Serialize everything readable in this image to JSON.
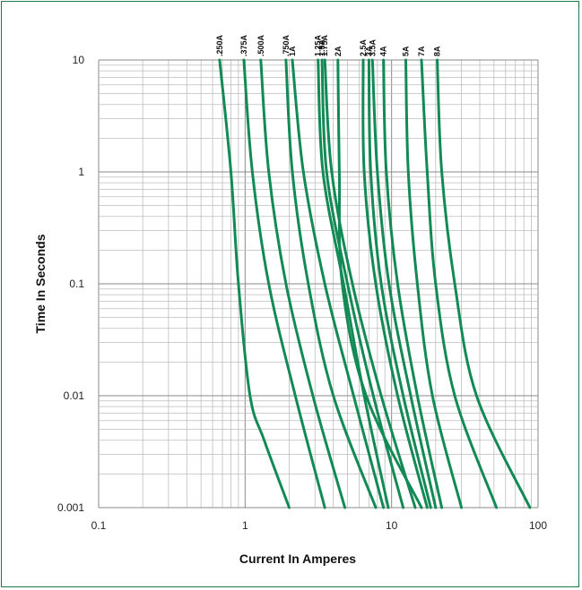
{
  "chart_data": {
    "type": "line",
    "title": "",
    "xlabel": "Current In Amperes",
    "ylabel": "Time In Seconds",
    "x_scale": "log",
    "y_scale": "log",
    "xlim": [
      0.1,
      100
    ],
    "ylim": [
      0.001,
      10
    ],
    "x_ticks": [
      "0.1",
      "1",
      "10",
      "100"
    ],
    "y_ticks": [
      "10",
      "1",
      "0.1",
      "0.01",
      "0.001"
    ],
    "grid": true,
    "line_color": "#138a55",
    "series": [
      {
        "name": ".250A",
        "points": [
          [
            0.67,
            10
          ],
          [
            0.8,
            1
          ],
          [
            0.9,
            0.1
          ],
          [
            1.08,
            0.01
          ],
          [
            1.35,
            0.004
          ],
          [
            2.0,
            0.001
          ]
        ]
      },
      {
        "name": ".375A",
        "points": [
          [
            0.98,
            10
          ],
          [
            1.12,
            1
          ],
          [
            1.45,
            0.1
          ],
          [
            2.2,
            0.01
          ],
          [
            3.5,
            0.001
          ]
        ]
      },
      {
        "name": ".500A",
        "points": [
          [
            1.28,
            10
          ],
          [
            1.45,
            1
          ],
          [
            1.9,
            0.1
          ],
          [
            2.9,
            0.01
          ],
          [
            4.8,
            0.001
          ]
        ]
      },
      {
        "name": ".750A",
        "points": [
          [
            1.9,
            10
          ],
          [
            2.1,
            1
          ],
          [
            2.7,
            0.1
          ],
          [
            4.0,
            0.01
          ],
          [
            7.8,
            0.001
          ]
        ]
      },
      {
        "name": "1A",
        "points": [
          [
            2.1,
            10
          ],
          [
            2.5,
            1
          ],
          [
            3.5,
            0.1
          ],
          [
            5.5,
            0.01
          ],
          [
            8.8,
            0.001
          ]
        ]
      },
      {
        "name": "1.25A",
        "points": [
          [
            3.15,
            10
          ],
          [
            3.4,
            1
          ],
          [
            4.7,
            0.1
          ],
          [
            6.5,
            0.01
          ],
          [
            9.5,
            0.001
          ]
        ]
      },
      {
        "name": "1.5A",
        "points": [
          [
            3.35,
            10
          ],
          [
            3.6,
            1
          ],
          [
            5.0,
            0.1
          ],
          [
            7.5,
            0.01
          ],
          [
            12.0,
            0.001
          ]
        ]
      },
      {
        "name": "1.75A",
        "points": [
          [
            3.5,
            10
          ],
          [
            3.9,
            1
          ],
          [
            5.4,
            0.1
          ],
          [
            8.5,
            0.01
          ],
          [
            14.5,
            0.001
          ]
        ]
      },
      {
        "name": "2A",
        "points": [
          [
            4.3,
            10
          ],
          [
            4.4,
            1
          ],
          [
            4.6,
            0.1
          ],
          [
            6.7,
            0.01
          ],
          [
            16.0,
            0.001
          ]
        ]
      },
      {
        "name": "2.5A",
        "points": [
          [
            6.4,
            10
          ],
          [
            6.5,
            1
          ],
          [
            7.8,
            0.1
          ],
          [
            11.0,
            0.01
          ],
          [
            17.5,
            0.001
          ]
        ]
      },
      {
        "name": "3A",
        "points": [
          [
            7.0,
            10
          ],
          [
            7.2,
            1
          ],
          [
            8.5,
            0.1
          ],
          [
            12.0,
            0.01
          ],
          [
            18.5,
            0.001
          ]
        ]
      },
      {
        "name": "3.5A",
        "points": [
          [
            7.4,
            10
          ],
          [
            8.0,
            1
          ],
          [
            9.6,
            0.1
          ],
          [
            13.5,
            0.01
          ],
          [
            20.0,
            0.001
          ]
        ]
      },
      {
        "name": "4A",
        "points": [
          [
            8.8,
            10
          ],
          [
            9.2,
            1
          ],
          [
            11.0,
            0.1
          ],
          [
            15.0,
            0.01
          ],
          [
            22.0,
            0.001
          ]
        ]
      },
      {
        "name": "5A",
        "points": [
          [
            12.5,
            10
          ],
          [
            13.0,
            1
          ],
          [
            15.0,
            0.1
          ],
          [
            19.0,
            0.01
          ],
          [
            30.0,
            0.001
          ]
        ]
      },
      {
        "name": "7A",
        "points": [
          [
            16.0,
            10
          ],
          [
            17.5,
            1
          ],
          [
            20.0,
            0.1
          ],
          [
            27.0,
            0.01
          ],
          [
            52.0,
            0.001
          ]
        ]
      },
      {
        "name": "8A",
        "points": [
          [
            20.5,
            10
          ],
          [
            22.0,
            1
          ],
          [
            27.0,
            0.1
          ],
          [
            38.0,
            0.01
          ],
          [
            88.0,
            0.001
          ]
        ]
      }
    ]
  }
}
